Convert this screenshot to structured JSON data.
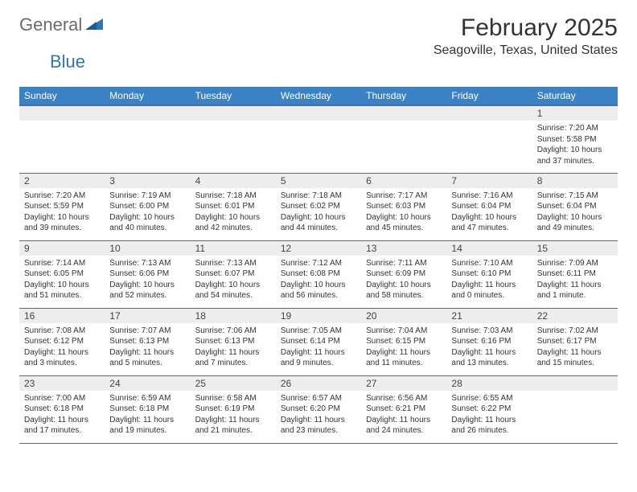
{
  "brand": {
    "word1": "General",
    "word2": "Blue"
  },
  "colors": {
    "header_bg": "#3b82c4",
    "header_text": "#ffffff",
    "border": "#2f75b5",
    "daynum_bg": "#ededed",
    "text": "#333333",
    "logo_gray": "#6b6b6b",
    "logo_blue": "#2f75b5",
    "background": "#ffffff"
  },
  "typography": {
    "title_fontsize": 30,
    "location_fontsize": 16,
    "weekday_fontsize": 12,
    "daynum_fontsize": 12,
    "body_fontsize": 10
  },
  "title": "February 2025",
  "location": "Seagoville, Texas, United States",
  "weekdays": [
    "Sunday",
    "Monday",
    "Tuesday",
    "Wednesday",
    "Thursday",
    "Friday",
    "Saturday"
  ],
  "calendar": {
    "type": "table",
    "start_weekday_index": 6,
    "rows": 5,
    "cols": 7,
    "days": [
      {
        "n": 1,
        "sunrise": "7:20 AM",
        "sunset": "5:58 PM",
        "daylight": "10 hours and 37 minutes."
      },
      {
        "n": 2,
        "sunrise": "7:20 AM",
        "sunset": "5:59 PM",
        "daylight": "10 hours and 39 minutes."
      },
      {
        "n": 3,
        "sunrise": "7:19 AM",
        "sunset": "6:00 PM",
        "daylight": "10 hours and 40 minutes."
      },
      {
        "n": 4,
        "sunrise": "7:18 AM",
        "sunset": "6:01 PM",
        "daylight": "10 hours and 42 minutes."
      },
      {
        "n": 5,
        "sunrise": "7:18 AM",
        "sunset": "6:02 PM",
        "daylight": "10 hours and 44 minutes."
      },
      {
        "n": 6,
        "sunrise": "7:17 AM",
        "sunset": "6:03 PM",
        "daylight": "10 hours and 45 minutes."
      },
      {
        "n": 7,
        "sunrise": "7:16 AM",
        "sunset": "6:04 PM",
        "daylight": "10 hours and 47 minutes."
      },
      {
        "n": 8,
        "sunrise": "7:15 AM",
        "sunset": "6:04 PM",
        "daylight": "10 hours and 49 minutes."
      },
      {
        "n": 9,
        "sunrise": "7:14 AM",
        "sunset": "6:05 PM",
        "daylight": "10 hours and 51 minutes."
      },
      {
        "n": 10,
        "sunrise": "7:13 AM",
        "sunset": "6:06 PM",
        "daylight": "10 hours and 52 minutes."
      },
      {
        "n": 11,
        "sunrise": "7:13 AM",
        "sunset": "6:07 PM",
        "daylight": "10 hours and 54 minutes."
      },
      {
        "n": 12,
        "sunrise": "7:12 AM",
        "sunset": "6:08 PM",
        "daylight": "10 hours and 56 minutes."
      },
      {
        "n": 13,
        "sunrise": "7:11 AM",
        "sunset": "6:09 PM",
        "daylight": "10 hours and 58 minutes."
      },
      {
        "n": 14,
        "sunrise": "7:10 AM",
        "sunset": "6:10 PM",
        "daylight": "11 hours and 0 minutes."
      },
      {
        "n": 15,
        "sunrise": "7:09 AM",
        "sunset": "6:11 PM",
        "daylight": "11 hours and 1 minute."
      },
      {
        "n": 16,
        "sunrise": "7:08 AM",
        "sunset": "6:12 PM",
        "daylight": "11 hours and 3 minutes."
      },
      {
        "n": 17,
        "sunrise": "7:07 AM",
        "sunset": "6:13 PM",
        "daylight": "11 hours and 5 minutes."
      },
      {
        "n": 18,
        "sunrise": "7:06 AM",
        "sunset": "6:13 PM",
        "daylight": "11 hours and 7 minutes."
      },
      {
        "n": 19,
        "sunrise": "7:05 AM",
        "sunset": "6:14 PM",
        "daylight": "11 hours and 9 minutes."
      },
      {
        "n": 20,
        "sunrise": "7:04 AM",
        "sunset": "6:15 PM",
        "daylight": "11 hours and 11 minutes."
      },
      {
        "n": 21,
        "sunrise": "7:03 AM",
        "sunset": "6:16 PM",
        "daylight": "11 hours and 13 minutes."
      },
      {
        "n": 22,
        "sunrise": "7:02 AM",
        "sunset": "6:17 PM",
        "daylight": "11 hours and 15 minutes."
      },
      {
        "n": 23,
        "sunrise": "7:00 AM",
        "sunset": "6:18 PM",
        "daylight": "11 hours and 17 minutes."
      },
      {
        "n": 24,
        "sunrise": "6:59 AM",
        "sunset": "6:18 PM",
        "daylight": "11 hours and 19 minutes."
      },
      {
        "n": 25,
        "sunrise": "6:58 AM",
        "sunset": "6:19 PM",
        "daylight": "11 hours and 21 minutes."
      },
      {
        "n": 26,
        "sunrise": "6:57 AM",
        "sunset": "6:20 PM",
        "daylight": "11 hours and 23 minutes."
      },
      {
        "n": 27,
        "sunrise": "6:56 AM",
        "sunset": "6:21 PM",
        "daylight": "11 hours and 24 minutes."
      },
      {
        "n": 28,
        "sunrise": "6:55 AM",
        "sunset": "6:22 PM",
        "daylight": "11 hours and 26 minutes."
      }
    ],
    "labels": {
      "sunrise": "Sunrise:",
      "sunset": "Sunset:",
      "daylight": "Daylight:"
    }
  }
}
